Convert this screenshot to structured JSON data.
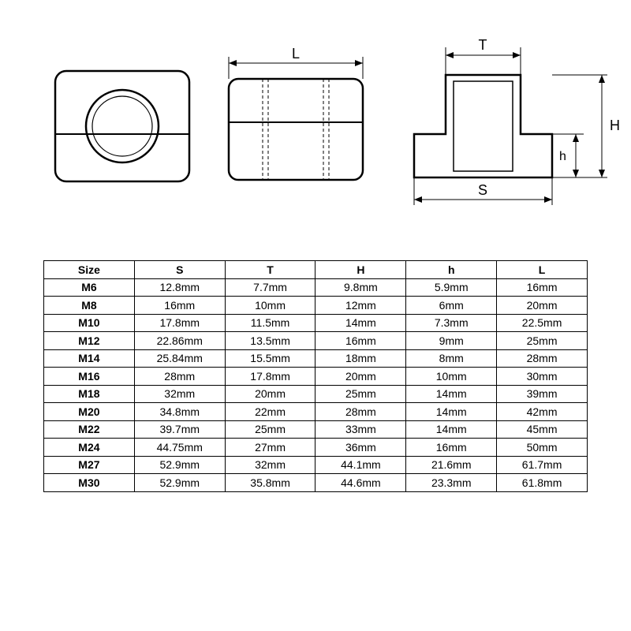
{
  "diagram": {
    "labels": {
      "L": "L",
      "T": "T",
      "H": "H",
      "h": "h",
      "S": "S"
    },
    "stroke": "#000000",
    "stroke_thin": 1,
    "stroke_thick": 2,
    "background": "#ffffff",
    "title_fontsize": 18,
    "label_fontsize": 16,
    "font_family": "Arial"
  },
  "table": {
    "columns": [
      "Size",
      "S",
      "T",
      "H",
      "h",
      "L"
    ],
    "rows": [
      [
        "M6",
        "12.8mm",
        "7.7mm",
        "9.8mm",
        "5.9mm",
        "16mm"
      ],
      [
        "M8",
        "16mm",
        "10mm",
        "12mm",
        "6mm",
        "20mm"
      ],
      [
        "M10",
        "17.8mm",
        "11.5mm",
        "14mm",
        "7.3mm",
        "22.5mm"
      ],
      [
        "M12",
        "22.86mm",
        "13.5mm",
        "16mm",
        "9mm",
        "25mm"
      ],
      [
        "M14",
        "25.84mm",
        "15.5mm",
        "18mm",
        "8mm",
        "28mm"
      ],
      [
        "M16",
        "28mm",
        "17.8mm",
        "20mm",
        "10mm",
        "30mm"
      ],
      [
        "M18",
        "32mm",
        "20mm",
        "25mm",
        "14mm",
        "39mm"
      ],
      [
        "M20",
        "34.8mm",
        "22mm",
        "28mm",
        "14mm",
        "42mm"
      ],
      [
        "M22",
        "39.7mm",
        "25mm",
        "33mm",
        "14mm",
        "45mm"
      ],
      [
        "M24",
        "44.75mm",
        "27mm",
        "36mm",
        "16mm",
        "50mm"
      ],
      [
        "M27",
        "52.9mm",
        "32mm",
        "44.1mm",
        "21.6mm",
        "61.7mm"
      ],
      [
        "M30",
        "52.9mm",
        "35.8mm",
        "44.6mm",
        "23.3mm",
        "61.8mm"
      ]
    ],
    "header_fontweight": 700,
    "cell_fontsize": 14,
    "border_color": "#000000",
    "background": "#ffffff"
  }
}
